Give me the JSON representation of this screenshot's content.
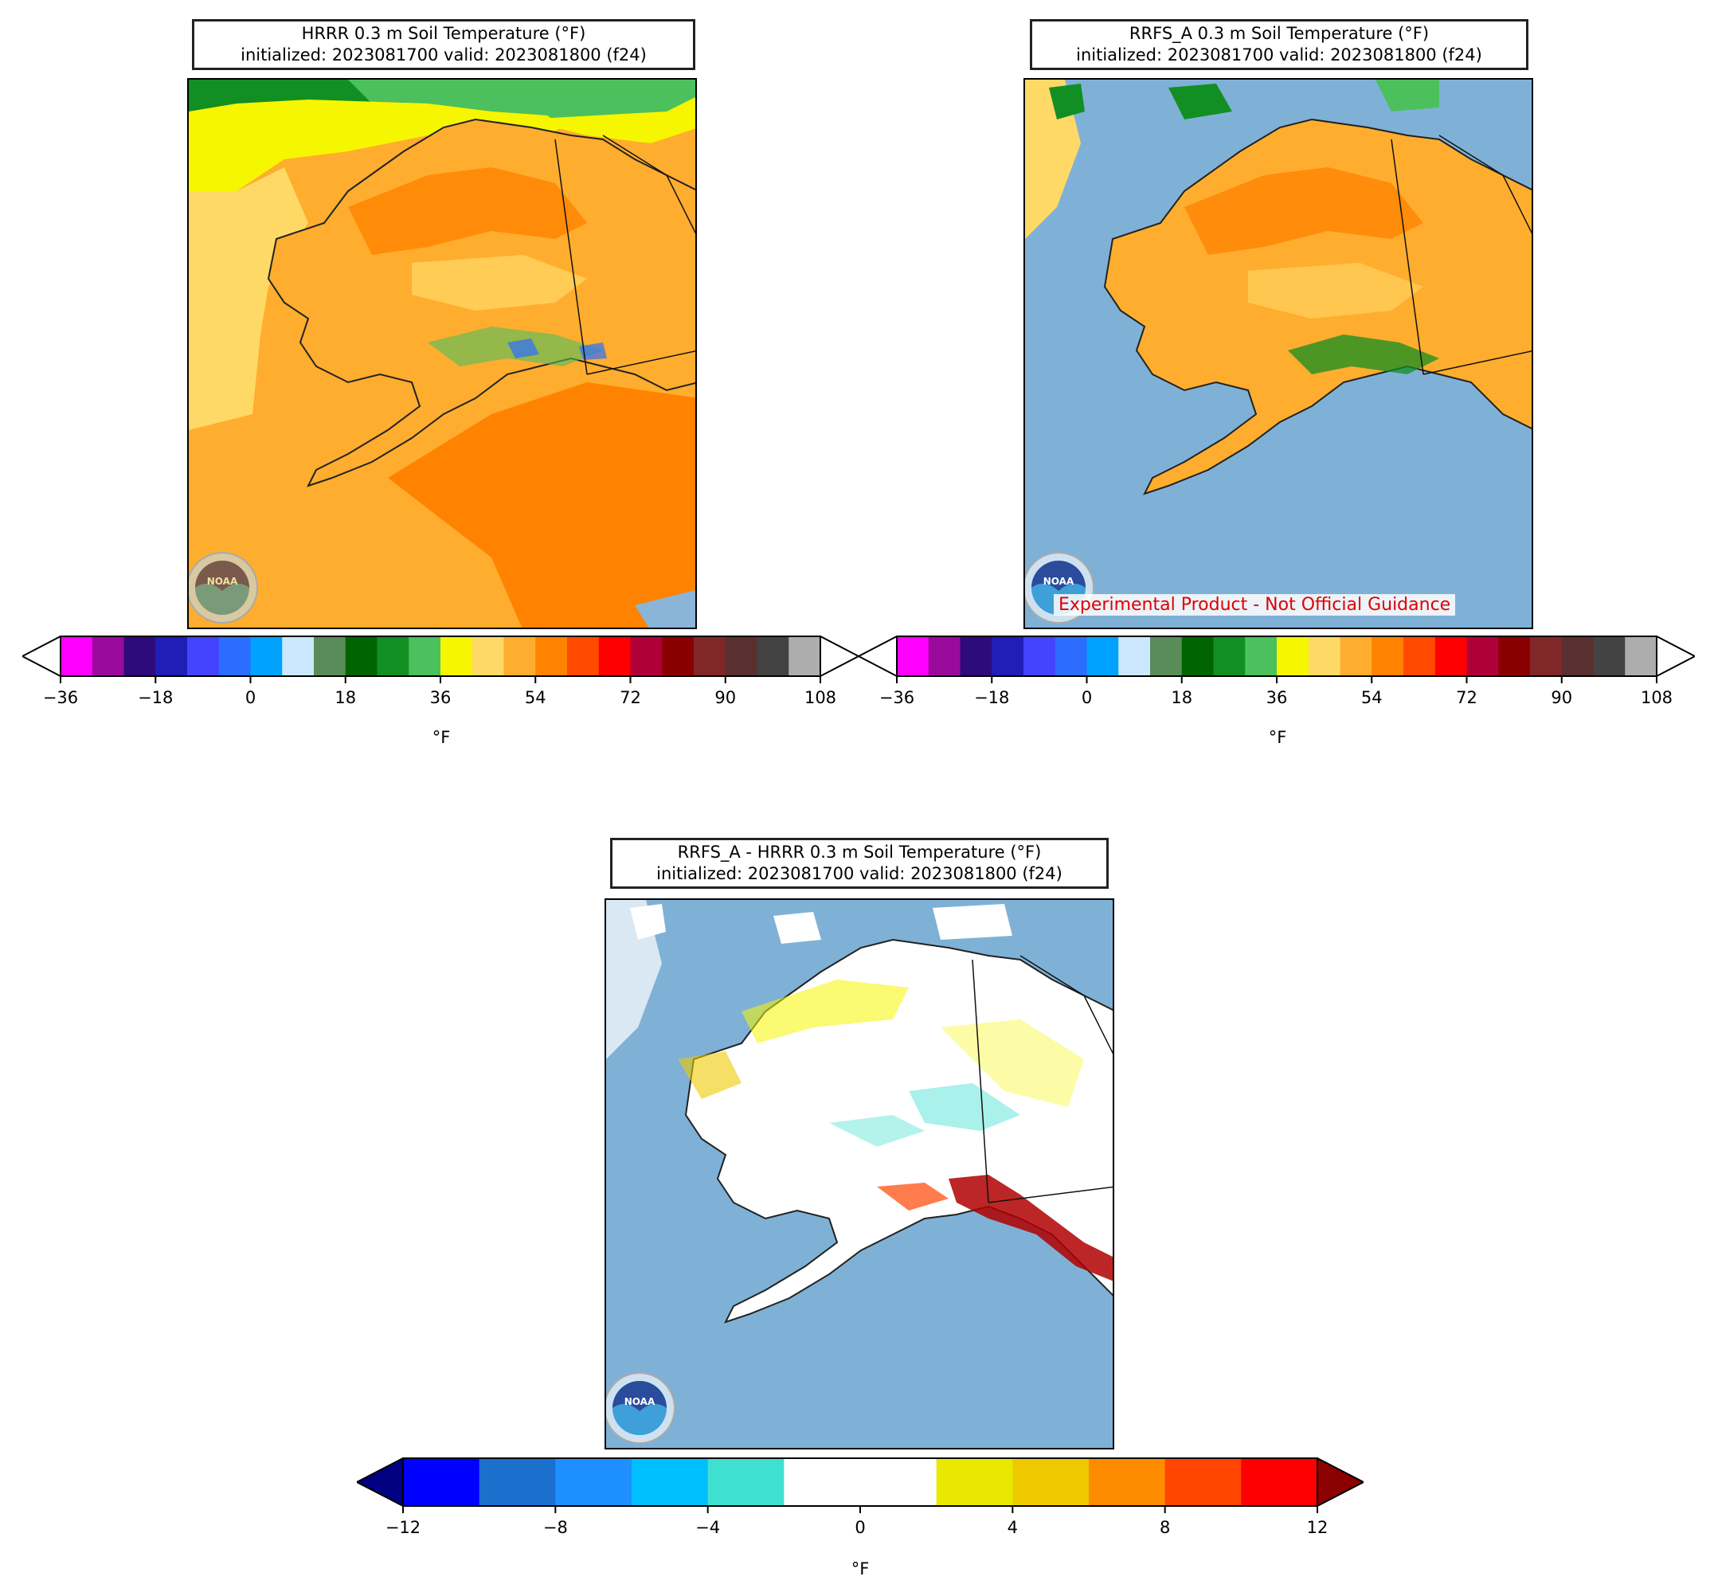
{
  "panels": {
    "hrrr": {
      "title_line1": "HRRR 0.3 m Soil Temperature (°F)",
      "title_line2": "initialized: 2023081700 valid: 2023081800 (f24)"
    },
    "rrfs": {
      "title_line1": "RRFS_A 0.3 m Soil Temperature (°F)",
      "title_line2": "initialized: 2023081700 valid: 2023081800 (f24)",
      "watermark": "Experimental Product - Not Official Guidance"
    },
    "diff": {
      "title_line1": "RRFS_A - HRRR 0.3 m Soil Temperature (°F)",
      "title_line2": "initialized: 2023081700 valid: 2023081800 (f24)"
    }
  },
  "temp_colorbar": {
    "unit": "°F",
    "ticks": [
      "−36",
      "−18",
      "0",
      "18",
      "36",
      "54",
      "72",
      "90",
      "108"
    ],
    "colors": [
      "#ff00ff",
      "#9a0a9a",
      "#2e0b7a",
      "#1f1fb8",
      "#4444ff",
      "#2c6dff",
      "#00a2ff",
      "#cce8ff",
      "#5a8c5a",
      "#006400",
      "#118f22",
      "#4cc05c",
      "#f6f600",
      "#ffd966",
      "#ffad2e",
      "#ff8200",
      "#ff4a00",
      "#ff0000",
      "#b0003a",
      "#8a0000",
      "#802828",
      "#5a2f2f",
      "#434343",
      "#adadad"
    ],
    "extend_max_color": "#ffffff",
    "extend_min_color": "#ffffff"
  },
  "diff_colorbar": {
    "unit": "°F",
    "ticks": [
      "−12",
      "−8",
      "−4",
      "0",
      "4",
      "8",
      "12"
    ],
    "colors": [
      "#0000ff",
      "#1a70cc",
      "#1e8fff",
      "#00bfff",
      "#40e0d0",
      "#ffffff",
      "#ffffff",
      "#e8e800",
      "#eec900",
      "#ff8c00",
      "#ff4500",
      "#ff0000"
    ],
    "extend_min_color": "#000080",
    "extend_max_color": "#8b0000"
  },
  "logo": {
    "text": "NOAA"
  }
}
